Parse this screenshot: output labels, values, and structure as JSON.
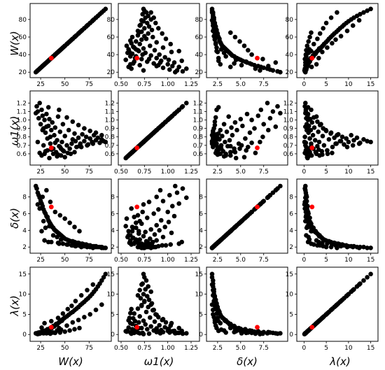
{
  "colors": {
    "points": "#000000",
    "highlight": "#ff0000",
    "background": "#ffffff"
  },
  "chart_data": {
    "type": "scatter",
    "layout": "pair-plot-matrix",
    "variables": [
      {
        "key": "W",
        "label": "W(x)",
        "lim": [
          17,
          95
        ],
        "ticks": [
          25,
          50,
          75
        ],
        "tick_labels": [
          "25",
          "50",
          "75"
        ],
        "ticks_y": [
          20,
          40,
          60,
          80
        ],
        "tick_labels_y": [
          "20",
          "40",
          "60",
          "80"
        ]
      },
      {
        "key": "omega1",
        "label": "ω1(x)",
        "lim": [
          0.5,
          1.31
        ],
        "ticks": [
          0.5,
          0.75,
          1.0,
          1.25
        ],
        "tick_labels": [
          "0.50",
          "0.75",
          "1.00",
          "1.25"
        ],
        "ticks_y": [
          0.6,
          0.7,
          0.8,
          0.9,
          1.0,
          1.1,
          1.2
        ],
        "tick_labels_y": [
          "0.6",
          "0.7",
          "0.8",
          "0.9",
          "1.0",
          "1.1",
          "1.2"
        ]
      },
      {
        "key": "delta",
        "label": "δ(x)",
        "lim": [
          1.6,
          9.8
        ],
        "ticks": [
          2.5,
          5.0,
          7.5
        ],
        "tick_labels": [
          "2.5",
          "5.0",
          "7.5"
        ],
        "ticks_y": [
          2,
          4,
          6,
          8
        ],
        "tick_labels_y": [
          "2",
          "4",
          "6",
          "8"
        ]
      },
      {
        "key": "lambda",
        "label": "λ(x)",
        "lim": [
          -1,
          16
        ],
        "ticks": [
          0,
          5,
          10,
          15
        ],
        "tick_labels": [
          "0",
          "5",
          "10",
          "15"
        ],
        "ticks_y": [
          0,
          5,
          10,
          15
        ],
        "tick_labels_y": [
          "0",
          "5",
          "10",
          "15"
        ]
      }
    ],
    "highlight_point": {
      "W": 36,
      "omega1": 0.67,
      "delta": 6.8,
      "lambda": 1.8
    },
    "points": [
      [
        20,
        1.08,
        9.3,
        0.3
      ],
      [
        21,
        1.16,
        9.0,
        0.2
      ],
      [
        22,
        1.1,
        8.5,
        0.4
      ],
      [
        23,
        1.02,
        8.2,
        0.5
      ],
      [
        24,
        1.2,
        7.9,
        0.3
      ],
      [
        25,
        0.95,
        7.5,
        0.6
      ],
      [
        26,
        1.12,
        7.2,
        0.4
      ],
      [
        27,
        1.05,
        6.9,
        0.8
      ],
      [
        28,
        0.9,
        6.5,
        0.7
      ],
      [
        29,
        1.0,
        6.2,
        0.9
      ],
      [
        30,
        0.85,
        6.0,
        1.0
      ],
      [
        31,
        1.07,
        5.7,
        0.9
      ],
      [
        32,
        0.78,
        5.5,
        1.3
      ],
      [
        33,
        0.93,
        5.2,
        1.1
      ],
      [
        34,
        1.01,
        5.0,
        1.4
      ],
      [
        35,
        0.72,
        4.8,
        1.6
      ],
      [
        36,
        0.88,
        4.6,
        1.5
      ],
      [
        37,
        0.97,
        4.4,
        1.8
      ],
      [
        38,
        0.66,
        4.3,
        2.1
      ],
      [
        39,
        0.82,
        4.1,
        2.0
      ],
      [
        40,
        0.91,
        4.0,
        2.3
      ],
      [
        41,
        0.62,
        3.9,
        2.6
      ],
      [
        42,
        0.76,
        3.8,
        2.5
      ],
      [
        43,
        1.04,
        3.7,
        2.8
      ],
      [
        44,
        0.69,
        3.6,
        3.0
      ],
      [
        45,
        0.86,
        3.5,
        3.2
      ],
      [
        46,
        0.58,
        3.4,
        3.5
      ],
      [
        47,
        0.74,
        3.3,
        3.4
      ],
      [
        48,
        0.95,
        3.2,
        3.8
      ],
      [
        49,
        0.63,
        3.1,
        4.0
      ],
      [
        50,
        0.81,
        3.0,
        4.2
      ],
      [
        52,
        0.7,
        2.9,
        4.5
      ],
      [
        54,
        0.88,
        2.8,
        4.9
      ],
      [
        56,
        0.6,
        2.7,
        5.3
      ],
      [
        58,
        0.77,
        2.7,
        5.6
      ],
      [
        60,
        0.84,
        2.6,
        6.0
      ],
      [
        62,
        0.68,
        2.5,
        6.4
      ],
      [
        64,
        0.79,
        2.5,
        6.8
      ],
      [
        66,
        0.72,
        2.4,
        7.3
      ],
      [
        68,
        0.83,
        2.4,
        7.7
      ],
      [
        70,
        0.75,
        2.3,
        8.1
      ],
      [
        72,
        0.8,
        2.3,
        8.6
      ],
      [
        74,
        0.71,
        2.2,
        9.0
      ],
      [
        76,
        0.78,
        2.2,
        9.5
      ],
      [
        78,
        0.74,
        2.1,
        10.0
      ],
      [
        80,
        0.82,
        2.1,
        10.6
      ],
      [
        82,
        0.76,
        2.1,
        11.2
      ],
      [
        84,
        0.79,
        2.0,
        11.9
      ],
      [
        86,
        0.73,
        2.0,
        12.6
      ],
      [
        88,
        0.77,
        2.0,
        13.4
      ],
      [
        90,
        0.75,
        1.9,
        14.2
      ],
      [
        92,
        0.74,
        1.9,
        15.0
      ],
      [
        26,
        0.58,
        3.9,
        1.7
      ],
      [
        30,
        0.63,
        4.3,
        0.6
      ],
      [
        34,
        0.55,
        4.5,
        0.8
      ],
      [
        38,
        0.6,
        3.4,
        0.5
      ],
      [
        42,
        0.57,
        3.2,
        1.0
      ],
      [
        46,
        0.66,
        2.9,
        1.2
      ],
      [
        28,
        0.7,
        5.1,
        0.3
      ],
      [
        32,
        0.64,
        5.6,
        0.4
      ],
      [
        24,
        0.61,
        6.6,
        0.2
      ],
      [
        22,
        0.74,
        7.1,
        0.1
      ],
      [
        27,
        0.88,
        8.0,
        0.6
      ],
      [
        33,
        1.15,
        2.6,
        0.9
      ],
      [
        44,
        1.12,
        2.4,
        1.6
      ],
      [
        52,
        1.03,
        2.3,
        2.2
      ],
      [
        58,
        0.98,
        2.2,
        3.0
      ],
      [
        64,
        0.94,
        2.2,
        3.6
      ],
      [
        70,
        0.9,
        2.1,
        4.3
      ],
      [
        76,
        0.87,
        2.0,
        5.0
      ],
      [
        82,
        0.85,
        2.0,
        6.1
      ],
      [
        88,
        0.82,
        1.9,
        7.4
      ],
      [
        40,
        0.73,
        6.2,
        0.4
      ],
      [
        45,
        0.68,
        5.8,
        0.5
      ],
      [
        50,
        0.56,
        5.4,
        0.7
      ],
      [
        55,
        0.66,
        4.9,
        1.0
      ],
      [
        60,
        0.62,
        4.4,
        1.3
      ],
      [
        65,
        0.69,
        3.9,
        1.6
      ],
      [
        35,
        0.8,
        7.4,
        0.2
      ],
      [
        31,
        0.92,
        8.8,
        0.3
      ],
      [
        29,
        0.6,
        2.8,
        2.8
      ],
      [
        36,
        0.65,
        2.6,
        3.3
      ],
      [
        43,
        0.59,
        2.5,
        4.1
      ],
      [
        48,
        0.64,
        2.4,
        5.2
      ],
      [
        53,
        0.61,
        2.3,
        6.3
      ],
      [
        57,
        0.72,
        2.2,
        7.1
      ],
      [
        61,
        0.75,
        2.1,
        8.3
      ],
      [
        67,
        0.68,
        2.0,
        9.7
      ],
      [
        73,
        0.7,
        2.0,
        11.0
      ],
      [
        79,
        0.72,
        1.9,
        12.4
      ]
    ]
  }
}
